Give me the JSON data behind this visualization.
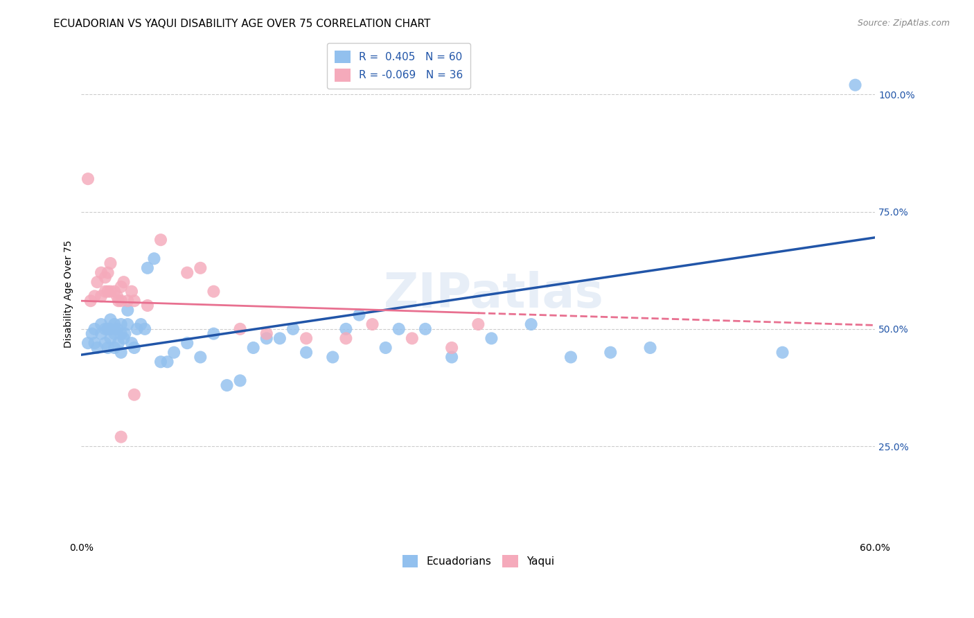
{
  "title": "ECUADORIAN VS YAQUI DISABILITY AGE OVER 75 CORRELATION CHART",
  "source": "Source: ZipAtlas.com",
  "ylabel": "Disability Age Over 75",
  "yaxis_labels": [
    "25.0%",
    "50.0%",
    "75.0%",
    "100.0%"
  ],
  "yaxis_values": [
    0.25,
    0.5,
    0.75,
    1.0
  ],
  "xmin": 0.0,
  "xmax": 0.6,
  "ymin": 0.05,
  "ymax": 1.1,
  "blue_color": "#92C0EE",
  "pink_color": "#F5AABB",
  "blue_line_color": "#2155A8",
  "pink_line_color": "#E87090",
  "legend_blue_label": "R =  0.405   N = 60",
  "legend_pink_label": "R = -0.069   N = 36",
  "legend_bottom_blue": "Ecuadorians",
  "legend_bottom_pink": "Yaqui",
  "blue_x": [
    0.005,
    0.008,
    0.01,
    0.01,
    0.012,
    0.015,
    0.015,
    0.018,
    0.018,
    0.02,
    0.02,
    0.022,
    0.022,
    0.022,
    0.025,
    0.025,
    0.025,
    0.027,
    0.028,
    0.03,
    0.03,
    0.03,
    0.032,
    0.033,
    0.035,
    0.035,
    0.038,
    0.04,
    0.042,
    0.045,
    0.048,
    0.05,
    0.055,
    0.06,
    0.065,
    0.07,
    0.08,
    0.09,
    0.1,
    0.11,
    0.12,
    0.13,
    0.14,
    0.15,
    0.16,
    0.17,
    0.19,
    0.2,
    0.21,
    0.23,
    0.24,
    0.26,
    0.28,
    0.31,
    0.34,
    0.37,
    0.4,
    0.43,
    0.53,
    0.585
  ],
  "blue_y": [
    0.47,
    0.49,
    0.47,
    0.5,
    0.46,
    0.49,
    0.51,
    0.47,
    0.5,
    0.46,
    0.5,
    0.48,
    0.5,
    0.52,
    0.46,
    0.49,
    0.51,
    0.5,
    0.47,
    0.45,
    0.49,
    0.51,
    0.48,
    0.49,
    0.51,
    0.54,
    0.47,
    0.46,
    0.5,
    0.51,
    0.5,
    0.63,
    0.65,
    0.43,
    0.43,
    0.45,
    0.47,
    0.44,
    0.49,
    0.38,
    0.39,
    0.46,
    0.48,
    0.48,
    0.5,
    0.45,
    0.44,
    0.5,
    0.53,
    0.46,
    0.5,
    0.5,
    0.44,
    0.48,
    0.51,
    0.44,
    0.45,
    0.46,
    0.45,
    1.02
  ],
  "pink_x": [
    0.005,
    0.007,
    0.01,
    0.012,
    0.015,
    0.015,
    0.018,
    0.018,
    0.02,
    0.02,
    0.022,
    0.022,
    0.025,
    0.027,
    0.028,
    0.03,
    0.03,
    0.032,
    0.035,
    0.038,
    0.04,
    0.05,
    0.06,
    0.08,
    0.09,
    0.1,
    0.12,
    0.14,
    0.17,
    0.2,
    0.22,
    0.25,
    0.28,
    0.3,
    0.03,
    0.04
  ],
  "pink_y": [
    0.82,
    0.56,
    0.57,
    0.6,
    0.57,
    0.62,
    0.58,
    0.61,
    0.58,
    0.62,
    0.58,
    0.64,
    0.58,
    0.57,
    0.56,
    0.56,
    0.59,
    0.6,
    0.56,
    0.58,
    0.56,
    0.55,
    0.69,
    0.62,
    0.63,
    0.58,
    0.5,
    0.49,
    0.48,
    0.48,
    0.51,
    0.48,
    0.46,
    0.51,
    0.27,
    0.36
  ],
  "blue_line_x0": 0.0,
  "blue_line_y0": 0.445,
  "blue_line_x1": 0.6,
  "blue_line_y1": 0.695,
  "pink_line_x0": 0.0,
  "pink_line_y0": 0.56,
  "pink_line_solid_x1": 0.3,
  "pink_line_solid_y1": 0.534,
  "pink_line_x1": 0.6,
  "pink_line_y1": 0.508,
  "background_color": "#FFFFFF",
  "grid_color": "#CCCCCC",
  "title_fontsize": 11,
  "axis_label_fontsize": 10,
  "tick_fontsize": 10,
  "legend_fontsize": 11,
  "source_fontsize": 9
}
